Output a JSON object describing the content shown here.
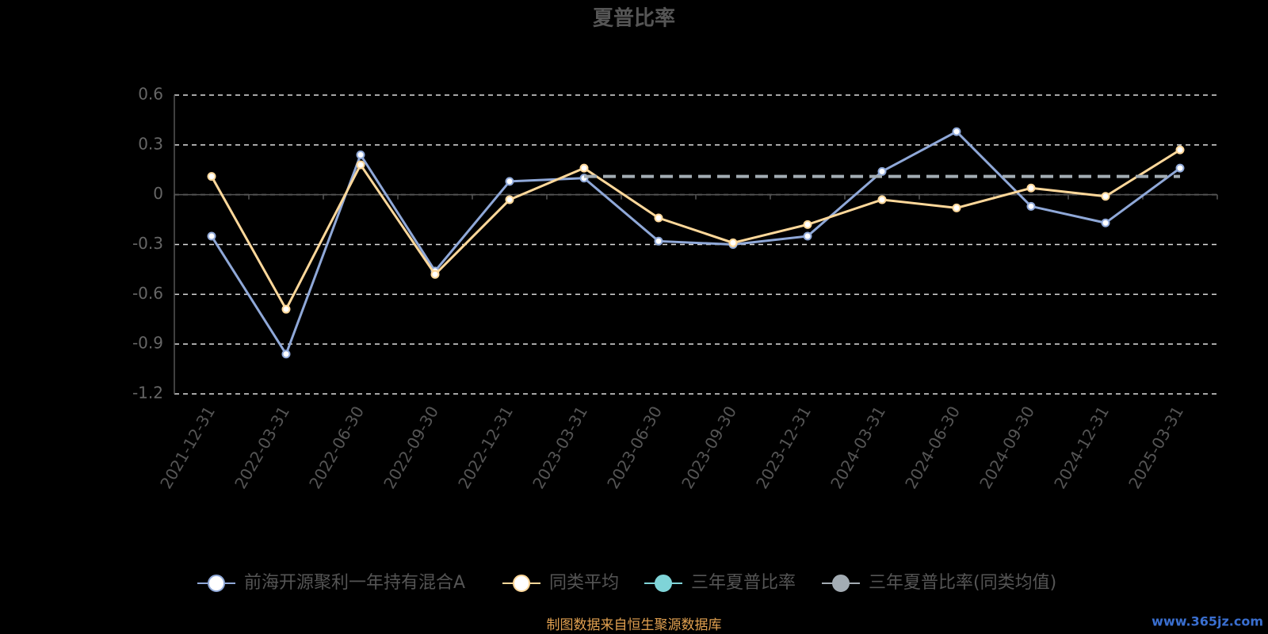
{
  "chart_data": {
    "type": "line",
    "title": "夏普比率",
    "categories": [
      "2021-12-31",
      "2022-03-31",
      "2022-06-30",
      "2022-09-30",
      "2022-12-31",
      "2023-03-31",
      "2023-06-30",
      "2023-09-30",
      "2023-12-31",
      "2024-03-31",
      "2024-06-30",
      "2024-09-30",
      "2024-12-31",
      "2025-03-31"
    ],
    "series": [
      {
        "name": "前海开源聚利一年持有混合A",
        "color": "#8fa8d8",
        "values": [
          -0.25,
          -0.96,
          0.24,
          -0.46,
          0.08,
          0.1,
          -0.28,
          -0.3,
          -0.25,
          0.14,
          0.38,
          -0.07,
          -0.17,
          0.16
        ]
      },
      {
        "name": "同类平均",
        "color": "#ffd89a",
        "values": [
          0.11,
          -0.69,
          0.18,
          -0.48,
          -0.03,
          0.16,
          -0.14,
          -0.29,
          -0.18,
          -0.03,
          -0.08,
          0.04,
          -0.01,
          0.27
        ]
      },
      {
        "name": "三年夏普比率",
        "color": "#7fd4d8",
        "values": [
          null,
          null,
          null,
          null,
          null,
          null,
          null,
          null,
          null,
          null,
          null,
          null,
          null,
          null
        ]
      },
      {
        "name": "三年夏普比率(同类均值)",
        "color": "#a3acb3",
        "values": [
          null,
          null,
          null,
          null,
          null,
          0.11,
          0.11,
          0.11,
          0.11,
          0.11,
          0.11,
          0.11,
          0.11,
          0.11
        ]
      }
    ],
    "ylim": [
      -1.2,
      0.6
    ],
    "yticks": [
      0.6,
      0.3,
      0,
      -0.3,
      -0.6,
      -0.9,
      -1.2
    ],
    "grid": true,
    "legend": "bottom",
    "source": "制图数据来自恒生聚源数据库",
    "watermark": "www.365jz.com"
  }
}
